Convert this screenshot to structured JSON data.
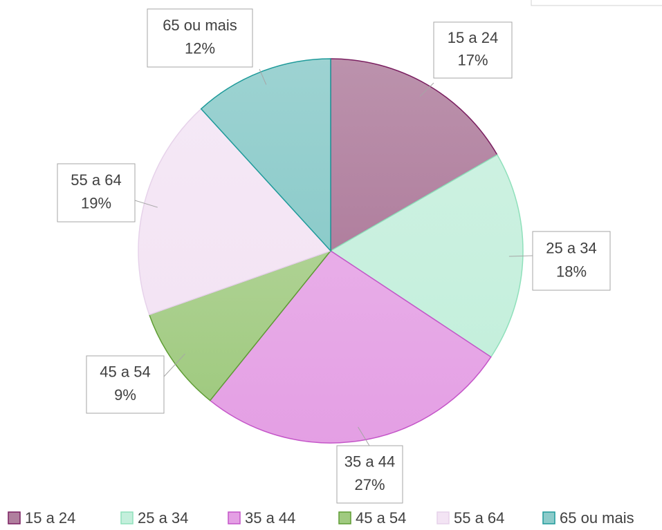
{
  "chart_data": {
    "type": "pie",
    "categories": [
      "15 a 24",
      "25 a 34",
      "35 a 44",
      "45 a 54",
      "55 a 64",
      "65 ou mais"
    ],
    "values": [
      17,
      18,
      27,
      9,
      19,
      12
    ],
    "value_labels": [
      "17%",
      "18%",
      "27%",
      "9%",
      "19%",
      "12%"
    ],
    "colors": [
      "#b07f9e",
      "#c4efdc",
      "#e49fe4",
      "#a0ca80",
      "#f3e4f4",
      "#8ccbca"
    ],
    "legend": "bottom"
  }
}
